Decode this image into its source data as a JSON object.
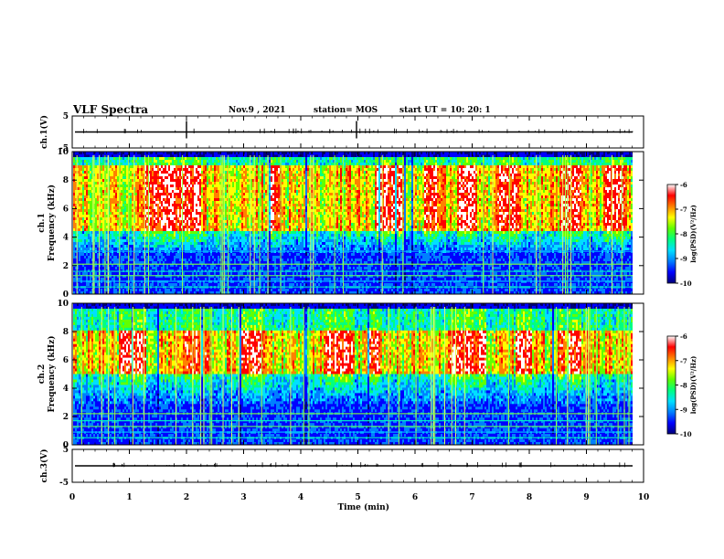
{
  "header": {
    "title": "VLF Spectra",
    "date": "Nov.9 , 2021",
    "station": "station= MOS",
    "start": "start UT = 10: 20: 1"
  },
  "chart_data": [
    {
      "type": "line",
      "panel": "ch1-voltage",
      "ylabel": "ch.1(V)",
      "ylim": [
        -5,
        5
      ],
      "yticks": [
        "5",
        "-5"
      ],
      "x": [
        0,
        10
      ],
      "series": [
        {
          "values": [
            0,
            0
          ]
        }
      ],
      "note_values": "flat trace near 0 V with sparse spikes"
    },
    {
      "type": "heatmap",
      "panel": "ch1-spectrogram",
      "ylabel": "ch.1 Frequency (kHz)",
      "ylim": [
        0,
        10
      ],
      "yticks": [
        "0",
        "2",
        "4",
        "6",
        "8",
        "10"
      ],
      "xlim": [
        0,
        9.8
      ],
      "intense_band_khz": [
        4.5,
        9
      ],
      "colorbar": {
        "label": "log(PSD)(V²/Hz)",
        "ticks": [
          "-6",
          "-7",
          "-8",
          "-9",
          "-10"
        ],
        "range": [
          -10,
          -6
        ]
      }
    },
    {
      "type": "heatmap",
      "panel": "ch2-spectrogram",
      "ylabel": "ch.2 Frequency (kHz)",
      "ylim": [
        0,
        10
      ],
      "yticks": [
        "0",
        "2",
        "4",
        "6",
        "8",
        "10"
      ],
      "xlim": [
        0,
        9.8
      ],
      "intense_band_khz": [
        5,
        8
      ],
      "colorbar": {
        "label": "log(PSD)(V²/Hz)",
        "ticks": [
          "-6",
          "-7",
          "-8",
          "-9",
          "-10"
        ],
        "range": [
          -10,
          -6
        ]
      }
    },
    {
      "type": "line",
      "panel": "ch3-voltage",
      "ylabel": "ch.3(V)",
      "ylim": [
        -5,
        5
      ],
      "yticks": [
        "5",
        "-5"
      ],
      "x": [
        0,
        10
      ],
      "series": [
        {
          "values": [
            0,
            0
          ]
        }
      ]
    }
  ],
  "xaxis": {
    "label": "Time (min)",
    "ticks": [
      "0",
      "1",
      "2",
      "3",
      "4",
      "5",
      "6",
      "7",
      "8",
      "9",
      "10"
    ],
    "range": [
      0,
      10
    ]
  },
  "colormap": [
    "#00007a",
    "#0000ff",
    "#0080ff",
    "#00e0ff",
    "#00ff80",
    "#60ff00",
    "#ffff00",
    "#ff8000",
    "#ff0000",
    "#ffffff"
  ]
}
